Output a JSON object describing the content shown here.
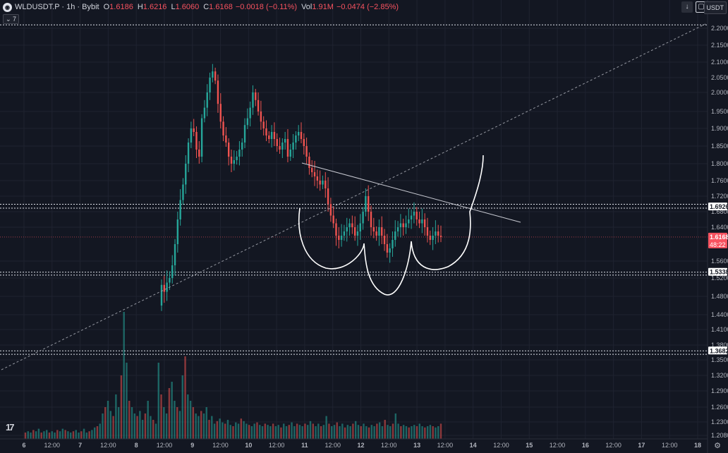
{
  "header": {
    "symbol_icon": "coin-logo-icon",
    "symbol_line": "WLDUSDT.P · 1h · Bybit",
    "o_label": "O",
    "o_value": "1.6186",
    "h_label": "H",
    "h_value": "1.6216",
    "l_label": "L",
    "l_value": "1.6060",
    "c_label": "C",
    "c_value": "1.6168",
    "change_value": "−0.0018 (−0.11%)",
    "vol_label": "Vol",
    "vol_value": "1.91M",
    "vol_change": "−0.0474 (−2.85%)",
    "indicator_count": "7",
    "currency": "USDT"
  },
  "colors": {
    "up": "#26a69a",
    "down": "#ef5350",
    "background": "#131722",
    "grid": "#1f2330",
    "current_price": "#f7525f"
  },
  "chart_data": {
    "type": "candlestick",
    "y_ticks": [
      "2.2000",
      "2.1500",
      "2.1000",
      "2.0500",
      "2.0000",
      "1.9500",
      "1.9000",
      "1.8500",
      "1.8000",
      "1.7600",
      "1.7200",
      "1.6800",
      "1.6400",
      "1.5600",
      "1.5200",
      "1.4800",
      "1.4400",
      "1.4100",
      "1.3800",
      "1.3500",
      "1.3200",
      "1.2900",
      "1.2600",
      "1.2300",
      "1.2080"
    ],
    "x_ticks": [
      "6",
      "12:00",
      "7",
      "12:00",
      "8",
      "12:00",
      "9",
      "12:00",
      "10",
      "12:00",
      "11",
      "12:00",
      "12",
      "12:00",
      "13",
      "12:00",
      "14",
      "12:00",
      "15",
      "12:00",
      "16",
      "12:00",
      "17",
      "12:00",
      "18"
    ],
    "price_labels": [
      {
        "value": "1.6926",
        "highlight": false
      },
      {
        "value": "1.6168",
        "highlight": true,
        "countdown": "48:22"
      },
      {
        "value": "1.5338",
        "highlight": false
      },
      {
        "value": "1.3682",
        "highlight": false
      }
    ],
    "horizontal_levels": [
      2.21,
      1.699,
      1.689,
      1.5338,
      1.5268,
      1.3682,
      1.3612
    ],
    "current_price": 1.6168,
    "candles_hourly_close": [
      1.505,
      1.49,
      1.51,
      1.52,
      1.55,
      1.6,
      1.66,
      1.71,
      1.75,
      1.8,
      1.86,
      1.9,
      1.89,
      1.84,
      1.82,
      1.93,
      1.96,
      2.0,
      2.05,
      2.07,
      2.04,
      1.97,
      1.92,
      1.88,
      1.86,
      1.82,
      1.8,
      1.81,
      1.82,
      1.84,
      1.86,
      1.91,
      1.93,
      1.96,
      2.0,
      1.98,
      1.95,
      1.92,
      1.9,
      1.88,
      1.87,
      1.89,
      1.87,
      1.85,
      1.84,
      1.86,
      1.87,
      1.82,
      1.84,
      1.86,
      1.88,
      1.89,
      1.87,
      1.85,
      1.82,
      1.79,
      1.78,
      1.77,
      1.76,
      1.75,
      1.76,
      1.74,
      1.7,
      1.67,
      1.65,
      1.62,
      1.61,
      1.62,
      1.63,
      1.64,
      1.65,
      1.64,
      1.62,
      1.63,
      1.65,
      1.68,
      1.72,
      1.68,
      1.64,
      1.63,
      1.62,
      1.64,
      1.62,
      1.6,
      1.58,
      1.59,
      1.61,
      1.63,
      1.64,
      1.65,
      1.64,
      1.65,
      1.66,
      1.67,
      1.68,
      1.66,
      1.65,
      1.66,
      1.64,
      1.62,
      1.61,
      1.62,
      1.63,
      1.62,
      1.6168
    ],
    "volume_relative": [
      0.05,
      0.06,
      0.05,
      0.07,
      0.06,
      0.08,
      0.05,
      0.06,
      0.07,
      0.05,
      0.06,
      0.05,
      0.07,
      0.06,
      0.08,
      0.07,
      0.06,
      0.05,
      0.06,
      0.07,
      0.05,
      0.06,
      0.08,
      0.05,
      0.06,
      0.07,
      0.09,
      0.1,
      0.12,
      0.2,
      0.25,
      0.3,
      0.22,
      0.18,
      0.35,
      0.25,
      0.5,
      1.0,
      0.6,
      0.3,
      0.25,
      0.2,
      0.18,
      0.22,
      0.15,
      0.2,
      0.3,
      0.18,
      0.15,
      0.12,
      0.6,
      0.35,
      0.25,
      0.2,
      0.4,
      0.45,
      0.3,
      0.25,
      0.22,
      0.5,
      0.65,
      0.35,
      0.3,
      0.25,
      0.2,
      0.18,
      0.22,
      0.2,
      0.25,
      0.15,
      0.18,
      0.12,
      0.14,
      0.16,
      0.13,
      0.12,
      0.15,
      0.11,
      0.1,
      0.13,
      0.12,
      0.16,
      0.14,
      0.12,
      0.11,
      0.1,
      0.12,
      0.13,
      0.11,
      0.1,
      0.12,
      0.11,
      0.1,
      0.12,
      0.1,
      0.11,
      0.09,
      0.12,
      0.1,
      0.11,
      0.13,
      0.1,
      0.12,
      0.11,
      0.1,
      0.12,
      0.11,
      0.14,
      0.12,
      0.1,
      0.12,
      0.1,
      0.11,
      0.18,
      0.12,
      0.1,
      0.11,
      0.13,
      0.1,
      0.12,
      0.09,
      0.11,
      0.1,
      0.12,
      0.14,
      0.11,
      0.1,
      0.12,
      0.1,
      0.09,
      0.11,
      0.1,
      0.12,
      0.13,
      0.1,
      0.15,
      0.11,
      0.1,
      0.12,
      0.2,
      0.12,
      0.1,
      0.11,
      0.1,
      0.09,
      0.1,
      0.11,
      0.1,
      0.12,
      0.1,
      0.09,
      0.1,
      0.11,
      0.1,
      0.09,
      0.1,
      0.12
    ]
  }
}
